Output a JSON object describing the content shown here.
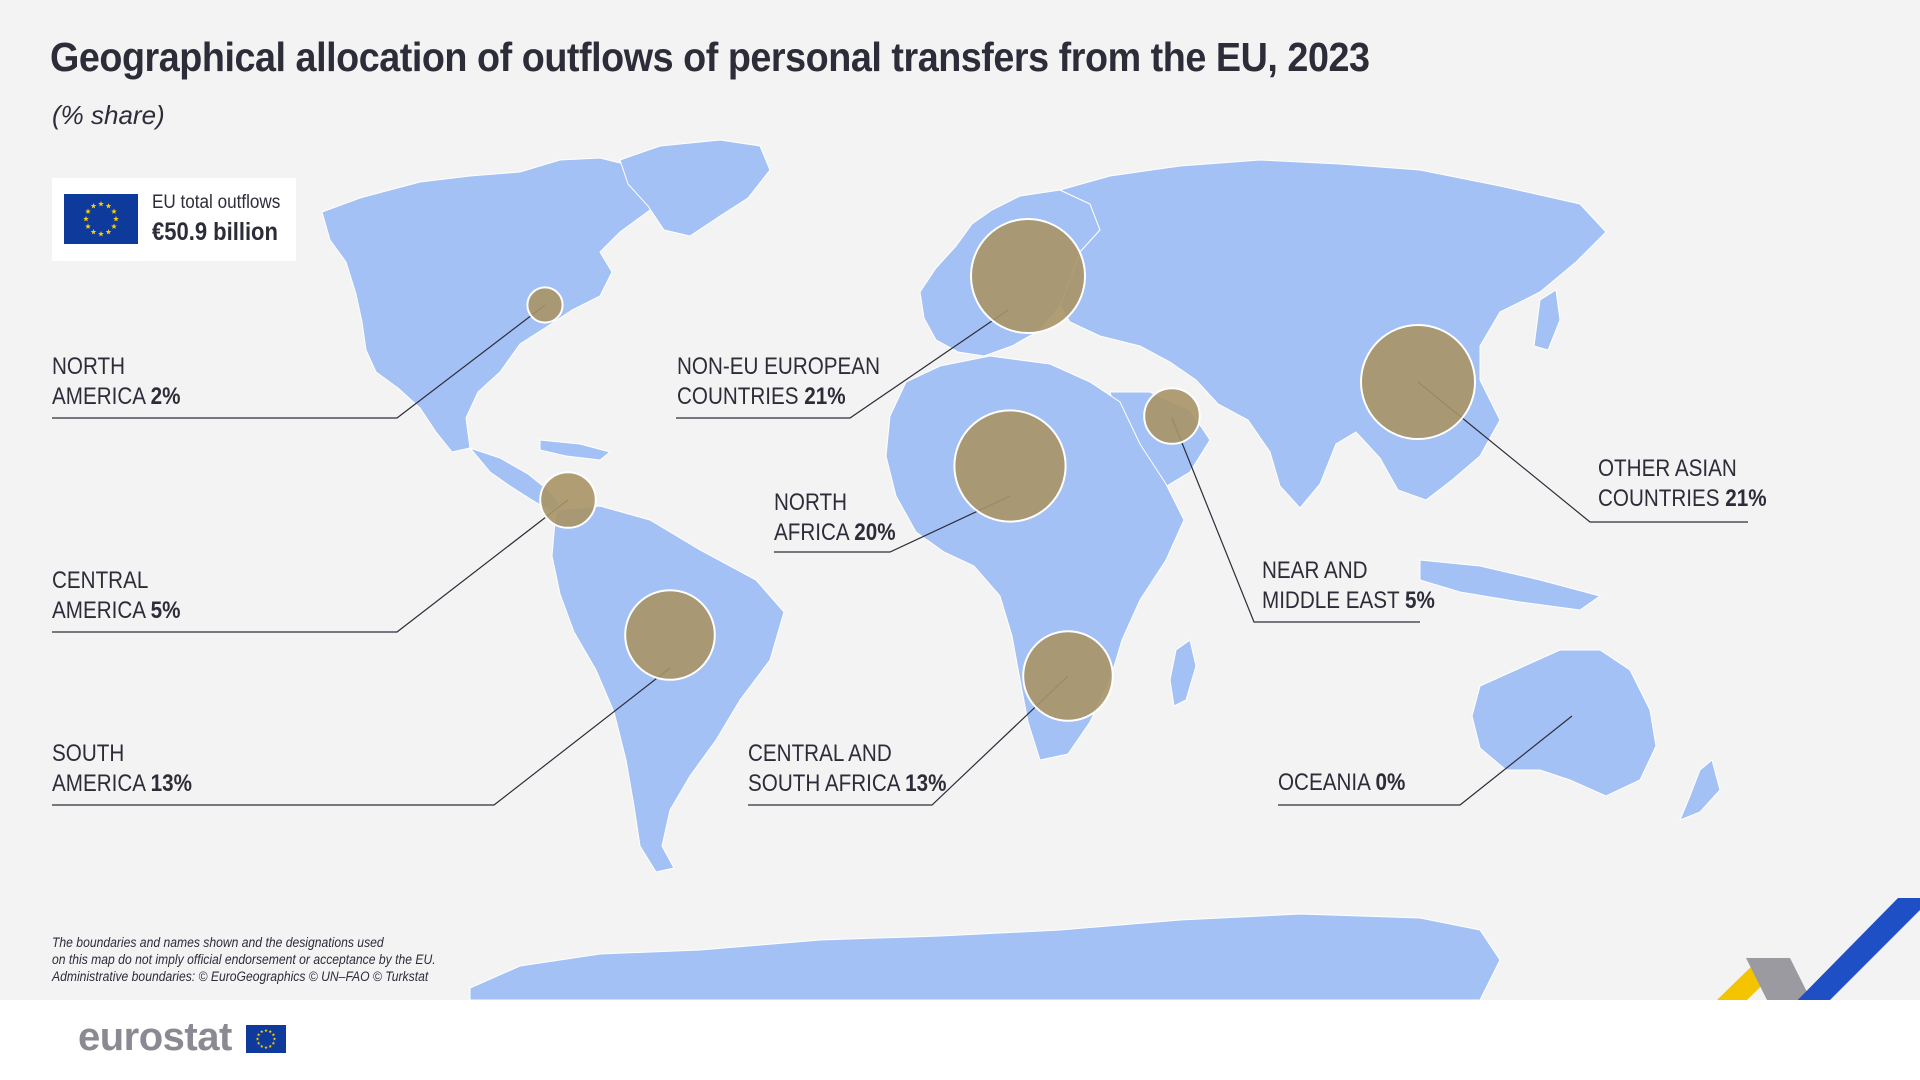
{
  "header": {
    "title": "Geographical allocation of outflows of personal transfers from the EU, 2023",
    "subtitle": "(% share)"
  },
  "totals": {
    "caption": "EU total outflows",
    "value": "€50.9 billion",
    "flag_icon": "eu-flag-icon"
  },
  "regions": [
    {
      "id": "north-america",
      "line1": "NORTH",
      "line2": "AMERICA",
      "pct": "2%",
      "share": 2
    },
    {
      "id": "central-america",
      "line1": "CENTRAL",
      "line2": "AMERICA",
      "pct": "5%",
      "share": 5
    },
    {
      "id": "south-america",
      "line1": "SOUTH",
      "line2": "AMERICA",
      "pct": "13%",
      "share": 13
    },
    {
      "id": "non-eu-european",
      "line1": "NON-EU EUROPEAN",
      "line2": "COUNTRIES",
      "pct": "21%",
      "share": 21
    },
    {
      "id": "north-africa",
      "line1": "NORTH",
      "line2": "AFRICA",
      "pct": "20%",
      "share": 20
    },
    {
      "id": "central-south-africa",
      "line1": "CENTRAL AND",
      "line2": "SOUTH AFRICA",
      "pct": "13%",
      "share": 13
    },
    {
      "id": "near-middle-east",
      "line1": "NEAR AND",
      "line2": "MIDDLE EAST",
      "pct": "5%",
      "share": 5
    },
    {
      "id": "other-asian",
      "line1": "OTHER ASIAN",
      "line2": "COUNTRIES",
      "pct": "21%",
      "share": 21
    },
    {
      "id": "oceania",
      "line1": "",
      "line2": "OCEANIA",
      "pct": "0%",
      "share": 0
    }
  ],
  "disclaimer": {
    "line1": "The boundaries and names shown and the designations used",
    "line2": "on this map do not imply official endorsement or acceptance by the EU.",
    "line3": "Administrative boundaries: © EuroGeographics © UN–FAO © Turkstat"
  },
  "footer": {
    "logo_text": "eurostat",
    "logo_icon": "eu-flag-icon"
  },
  "colors": {
    "background": "#f3f3f3",
    "land": "#a3c1f5",
    "bubble": "#a89366",
    "bubble_border": "#ffffff",
    "text": "#2d2d3a",
    "flag_blue": "#0d3a9b",
    "star_yellow": "#ffcc00",
    "ribbon_yellow": "#f5c400",
    "ribbon_blue": "#1f4fc4",
    "ribbon_grey": "#9a9aa0"
  }
}
